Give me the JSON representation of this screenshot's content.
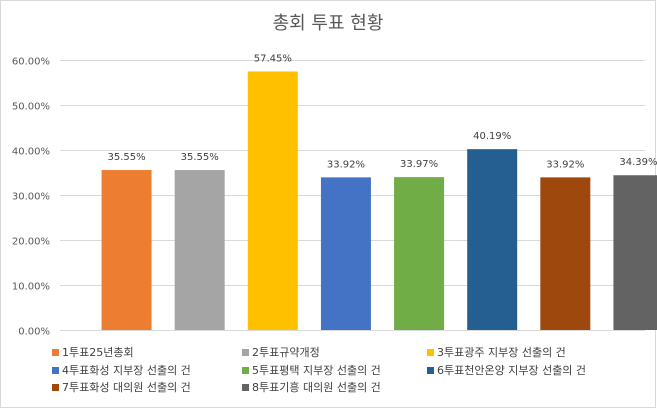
{
  "chart_data": {
    "type": "bar",
    "title": "총회 투표 현황",
    "categories": [
      "1투표25년총회",
      "2투표규약개정",
      "3투표광주 지부장 선출의 건",
      "4투표화성 지부장 선출의 건",
      "5투표평택 지부장 선출의 건",
      "6투표천안온양 지부장 선출의 건",
      "7투표화성 대의원 선출의 건",
      "8투표기흥 대의원 선출의 건"
    ],
    "values": [
      35.55,
      35.55,
      57.45,
      33.92,
      33.97,
      40.19,
      33.92,
      34.39
    ],
    "data_labels": [
      "35.55%",
      "35.55%",
      "57.45%",
      "33.92%",
      "33.97%",
      "40.19%",
      "33.92%",
      "34.39%"
    ],
    "colors": [
      "#ED7D31",
      "#A5A5A5",
      "#FFC000",
      "#4472C4",
      "#70AD47",
      "#255E91",
      "#9E480E",
      "#636363"
    ],
    "ylim": [
      0,
      60
    ],
    "yticks": [
      "0.00%",
      "10.00%",
      "20.00%",
      "30.00%",
      "40.00%",
      "50.00%",
      "60.00%"
    ],
    "ytick_values": [
      0,
      10,
      20,
      30,
      40,
      50,
      60
    ],
    "grid": true,
    "legend_position": "bottom",
    "xlabel": "",
    "ylabel": ""
  }
}
